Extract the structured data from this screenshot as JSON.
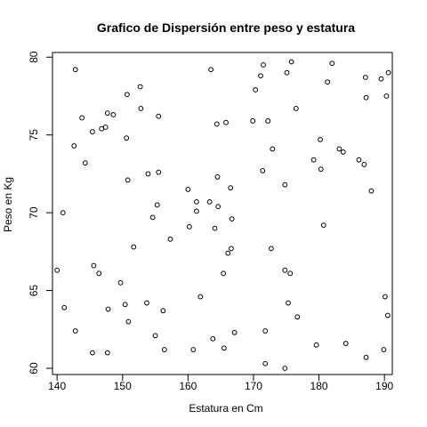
{
  "chart_data": {
    "type": "scatter",
    "title": "Grafico de Dispersión entre peso y estatura",
    "xlabel": "Estatura en Cm",
    "ylabel": "Peso en Kg",
    "xlim": [
      139.3,
      191.2
    ],
    "ylim": [
      59.6,
      80.3
    ],
    "xticks": [
      140,
      150,
      160,
      170,
      180,
      190
    ],
    "yticks": [
      60,
      65,
      70,
      75,
      80
    ],
    "grid": false,
    "points": [
      [
        140.0,
        66.3
      ],
      [
        140.9,
        70.0
      ],
      [
        141.1,
        63.9
      ],
      [
        142.6,
        74.3
      ],
      [
        142.8,
        79.2
      ],
      [
        142.8,
        62.4
      ],
      [
        143.8,
        76.1
      ],
      [
        144.3,
        73.2
      ],
      [
        145.4,
        75.2
      ],
      [
        145.6,
        66.6
      ],
      [
        145.4,
        61.0
      ],
      [
        146.4,
        66.1
      ],
      [
        146.8,
        75.4
      ],
      [
        147.4,
        75.5
      ],
      [
        147.7,
        76.4
      ],
      [
        147.8,
        63.8
      ],
      [
        147.7,
        61.0
      ],
      [
        148.6,
        76.3
      ],
      [
        149.7,
        65.5
      ],
      [
        150.4,
        64.1
      ],
      [
        150.6,
        74.8
      ],
      [
        150.7,
        77.6
      ],
      [
        150.8,
        72.1
      ],
      [
        150.9,
        63.0
      ],
      [
        151.7,
        67.8
      ],
      [
        152.7,
        78.1
      ],
      [
        152.8,
        76.7
      ],
      [
        153.7,
        64.2
      ],
      [
        153.9,
        72.5
      ],
      [
        154.6,
        69.7
      ],
      [
        155.0,
        62.1
      ],
      [
        155.3,
        70.5
      ],
      [
        155.5,
        72.6
      ],
      [
        155.5,
        76.2
      ],
      [
        156.2,
        63.7
      ],
      [
        156.4,
        61.2
      ],
      [
        157.3,
        68.3
      ],
      [
        160.0,
        71.5
      ],
      [
        160.2,
        69.1
      ],
      [
        160.8,
        61.2
      ],
      [
        161.3,
        70.7
      ],
      [
        161.3,
        70.1
      ],
      [
        161.9,
        64.6
      ],
      [
        163.3,
        70.7
      ],
      [
        163.5,
        79.2
      ],
      [
        163.8,
        61.9
      ],
      [
        164.1,
        69.0
      ],
      [
        164.4,
        75.7
      ],
      [
        164.5,
        72.3
      ],
      [
        164.6,
        70.4
      ],
      [
        165.4,
        66.1
      ],
      [
        165.5,
        61.3
      ],
      [
        165.8,
        75.8
      ],
      [
        166.1,
        67.4
      ],
      [
        166.5,
        71.6
      ],
      [
        166.6,
        67.7
      ],
      [
        166.7,
        69.6
      ],
      [
        167.1,
        62.3
      ],
      [
        169.9,
        75.9
      ],
      [
        170.3,
        77.9
      ],
      [
        171.1,
        78.8
      ],
      [
        171.4,
        72.7
      ],
      [
        171.5,
        79.5
      ],
      [
        171.8,
        62.4
      ],
      [
        171.8,
        60.3
      ],
      [
        172.2,
        75.9
      ],
      [
        172.7,
        67.7
      ],
      [
        172.9,
        74.1
      ],
      [
        174.8,
        60.0
      ],
      [
        174.8,
        71.8
      ],
      [
        174.8,
        66.3
      ],
      [
        175.1,
        79.0
      ],
      [
        175.3,
        64.2
      ],
      [
        175.6,
        66.1
      ],
      [
        175.8,
        79.7
      ],
      [
        176.5,
        76.7
      ],
      [
        176.7,
        63.3
      ],
      [
        179.2,
        73.4
      ],
      [
        179.6,
        61.5
      ],
      [
        180.2,
        74.7
      ],
      [
        180.3,
        72.8
      ],
      [
        180.7,
        69.2
      ],
      [
        181.3,
        78.4
      ],
      [
        182.0,
        79.6
      ],
      [
        183.1,
        74.1
      ],
      [
        183.7,
        73.9
      ],
      [
        184.1,
        61.6
      ],
      [
        186.1,
        73.4
      ],
      [
        186.9,
        73.1
      ],
      [
        187.1,
        78.7
      ],
      [
        187.2,
        77.4
      ],
      [
        187.2,
        60.7
      ],
      [
        188.0,
        71.4
      ],
      [
        189.5,
        78.6
      ],
      [
        189.9,
        61.2
      ],
      [
        190.1,
        64.6
      ],
      [
        190.3,
        77.5
      ],
      [
        190.5,
        63.4
      ],
      [
        190.6,
        79.0
      ]
    ]
  }
}
